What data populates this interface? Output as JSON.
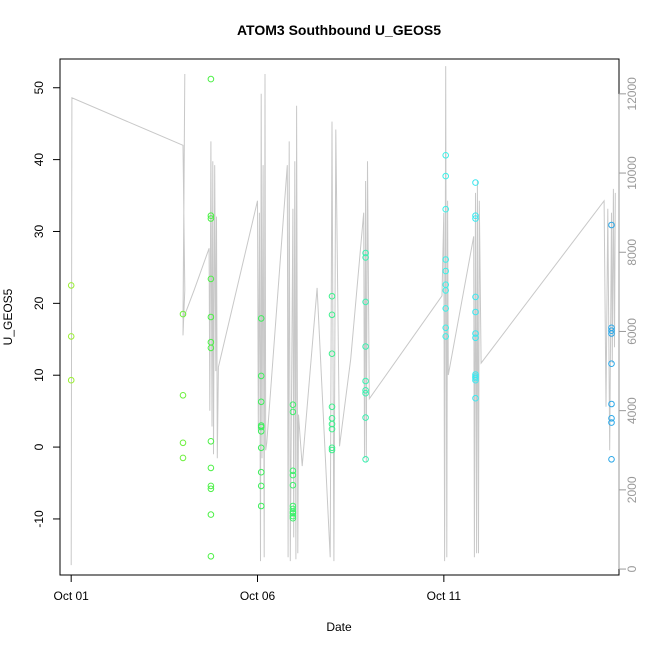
{
  "chart_data": {
    "type": "scatter",
    "title": "ATOM3 Southbound U_GEOS5",
    "xlabel": "Date",
    "ylabel": "U_GEOS5",
    "x_ticks": [
      {
        "label": "Oct 01",
        "day": 1
      },
      {
        "label": "Oct 06",
        "day": 6
      },
      {
        "label": "Oct 11",
        "day": 11
      }
    ],
    "y_ticks": [
      -10,
      0,
      10,
      20,
      30,
      40,
      50
    ],
    "y2_ticks": [
      0,
      2000,
      4000,
      6000,
      8000,
      10000,
      12000
    ],
    "xlim": [
      0.7,
      15.7
    ],
    "ylim": [
      -17.8,
      54
    ],
    "y2lim": [
      -150,
      12880
    ],
    "altitude_color": "#c8c8c8",
    "point_series": [
      {
        "x": 1.0,
        "color": "#9aef32",
        "y": [
          22.5,
          15.4,
          9.3
        ]
      },
      {
        "x": 4.0,
        "color": "#6cf03c",
        "y": [
          18.5,
          7.2,
          0.6,
          -1.5
        ]
      },
      {
        "x": 4.75,
        "color": "#4cf046",
        "y": [
          51.2,
          32.2,
          31.8,
          23.4,
          18.1,
          14.6,
          13.8,
          0.8,
          -2.9,
          -5.4,
          -5.8,
          -9.4,
          -15.2
        ]
      },
      {
        "x": 6.1,
        "color": "#3cf05a",
        "y": [
          17.9,
          9.9,
          6.3,
          3.0,
          2.8,
          2.2,
          -0.1,
          -3.5,
          -5.4,
          -8.2
        ]
      },
      {
        "x": 6.95,
        "color": "#3cf06a",
        "y": [
          5.9,
          4.9,
          -3.3,
          -3.9,
          -5.3,
          -8.2,
          -8.6,
          -9.0,
          -9.2,
          -9.9,
          -9.6
        ]
      },
      {
        "x": 8.0,
        "color": "#3cf08c",
        "y": [
          21.0,
          18.4,
          13.0,
          5.6,
          4.0,
          3.2,
          2.5,
          -0.1,
          -0.4
        ]
      },
      {
        "x": 8.9,
        "color": "#3cf0b0",
        "y": [
          27.0,
          26.4,
          20.2,
          14.0,
          9.2,
          7.9,
          7.5,
          4.1,
          -1.7
        ]
      },
      {
        "x": 11.05,
        "color": "#3cf0e8",
        "y": [
          40.6,
          37.7,
          33.1,
          26.1,
          24.5,
          22.6,
          21.8,
          19.3,
          16.6,
          15.4
        ]
      },
      {
        "x": 11.85,
        "color": "#3ce8f0",
        "y": [
          36.8,
          32.2,
          31.8,
          20.9,
          18.8,
          15.8,
          15.2,
          10.1,
          9.8,
          9.3,
          9.6,
          6.8
        ]
      },
      {
        "x": 15.5,
        "color": "#2ca8e8",
        "y": [
          30.9,
          16.6,
          16.2,
          15.8,
          11.6,
          6.0,
          4.0,
          3.4,
          -1.7
        ]
      }
    ],
    "altitude_track": [
      [
        1.0,
        100
      ],
      [
        1.02,
        11900
      ],
      [
        4.0,
        10700
      ],
      [
        4.05,
        7050
      ],
      [
        4.0,
        5900
      ],
      [
        4.05,
        12500
      ],
      [
        4.0,
        6300
      ],
      [
        4.3,
        7050
      ],
      [
        4.7,
        8100
      ],
      [
        4.72,
        4000
      ],
      [
        4.75,
        10800
      ],
      [
        4.78,
        3600
      ],
      [
        4.8,
        10300
      ],
      [
        4.82,
        2900
      ],
      [
        4.85,
        10200
      ],
      [
        4.88,
        5000
      ],
      [
        4.9,
        8900
      ],
      [
        4.92,
        2800
      ],
      [
        4.95,
        5100
      ],
      [
        6.0,
        9300
      ],
      [
        6.02,
        3500
      ],
      [
        6.05,
        9000
      ],
      [
        6.08,
        200
      ],
      [
        6.1,
        12000
      ],
      [
        6.12,
        2800
      ],
      [
        6.15,
        10200
      ],
      [
        6.18,
        300
      ],
      [
        6.2,
        12500
      ],
      [
        6.22,
        3000
      ],
      [
        6.25,
        3200
      ],
      [
        6.8,
        10200
      ],
      [
        6.82,
        300
      ],
      [
        6.85,
        10800
      ],
      [
        6.88,
        200
      ],
      [
        6.95,
        9100
      ],
      [
        6.97,
        800
      ],
      [
        7.0,
        10300
      ],
      [
        7.03,
        250
      ],
      [
        7.05,
        11700
      ],
      [
        7.08,
        400
      ],
      [
        7.1,
        3900
      ],
      [
        7.2,
        2600
      ],
      [
        7.6,
        7100
      ],
      [
        7.95,
        300
      ],
      [
        8.0,
        11300
      ],
      [
        8.05,
        200
      ],
      [
        8.1,
        11100
      ],
      [
        8.2,
        3100
      ],
      [
        8.5,
        5300
      ],
      [
        8.85,
        9000
      ],
      [
        8.87,
        2800
      ],
      [
        8.9,
        9800
      ],
      [
        8.92,
        2700
      ],
      [
        8.95,
        10300
      ],
      [
        9.0,
        4300
      ],
      [
        10.95,
        6900
      ],
      [
        11.0,
        9000
      ],
      [
        11.02,
        200
      ],
      [
        11.05,
        12700
      ],
      [
        11.08,
        300
      ],
      [
        11.1,
        9300
      ],
      [
        11.12,
        4900
      ],
      [
        11.8,
        8400
      ],
      [
        11.82,
        300
      ],
      [
        11.85,
        9500
      ],
      [
        11.88,
        400
      ],
      [
        11.9,
        9800
      ],
      [
        11.93,
        400
      ],
      [
        11.95,
        9300
      ],
      [
        12.0,
        5200
      ],
      [
        15.3,
        9300
      ],
      [
        15.35,
        4100
      ],
      [
        15.4,
        9100
      ],
      [
        15.45,
        3000
      ],
      [
        15.5,
        9000
      ],
      [
        15.52,
        5200
      ],
      [
        15.55,
        9600
      ],
      [
        15.58,
        5600
      ],
      [
        15.6,
        9500
      ]
    ]
  }
}
